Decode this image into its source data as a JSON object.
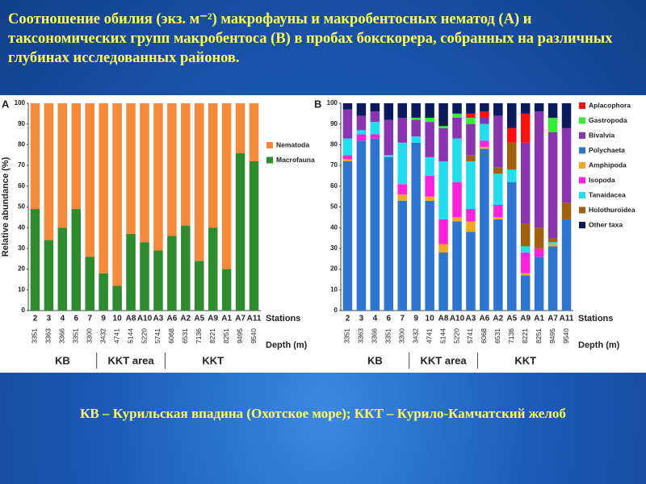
{
  "title": "Соотношение обилия (экз. м⁻²) макрофауны и макробентосных нематод (A) и таксономических групп макробентоса (B) в пробах бокскорера, собранных на различных глубинах исследованных районов.",
  "footnote": "КВ – Курильская  впадина  (Охотское  море);   ККТ – Курило-Камчатский  желоб",
  "chart_data": [
    {
      "type": "bar",
      "panel": "A",
      "ylabel": "Relative abundance (%)",
      "x_label": "Stations",
      "depth_label": "Depth (m)",
      "groups": [
        "KB",
        "KKT area",
        "KKT"
      ],
      "categories": [
        "2",
        "3",
        "4",
        "6",
        "7",
        "9",
        "10",
        "A8",
        "A10",
        "A3",
        "A6",
        "A2",
        "A5",
        "A9",
        "A1",
        "A7",
        "A11"
      ],
      "depths": [
        3351,
        3363,
        3366,
        3351,
        3300,
        3432,
        4741,
        5144,
        5220,
        5741,
        6068,
        6531,
        7136,
        8221,
        8251,
        9495,
        9540
      ],
      "ylim": [
        0,
        100
      ],
      "yticks": [
        0,
        10,
        20,
        30,
        40,
        50,
        60,
        70,
        80,
        90,
        100
      ],
      "series": [
        {
          "name": "Nematoda",
          "color": "#f58a3a",
          "values": [
            51,
            66,
            60,
            51,
            74,
            82,
            88,
            63,
            67,
            71,
            64,
            59,
            76,
            60,
            80,
            24,
            28
          ]
        },
        {
          "name": "Macrofauna",
          "color": "#2e8b2e",
          "values": [
            49,
            34,
            40,
            49,
            26,
            18,
            12,
            37,
            33,
            29,
            36,
            41,
            24,
            40,
            20,
            76,
            72
          ]
        }
      ]
    },
    {
      "type": "bar",
      "panel": "B",
      "x_label": "Stations",
      "depth_label": "Depth (m)",
      "groups": [
        "KB",
        "KKT area",
        "KKT"
      ],
      "categories": [
        "2",
        "3",
        "4",
        "6",
        "7",
        "9",
        "10",
        "A8",
        "A10",
        "A3",
        "A6",
        "A2",
        "A5",
        "A9",
        "A1",
        "A7",
        "A11"
      ],
      "depths": [
        3351,
        3363,
        3366,
        3351,
        3300,
        3432,
        4741,
        5144,
        5220,
        5741,
        6068,
        6531,
        7136,
        8221,
        8251,
        9495,
        9540
      ],
      "ylim": [
        0,
        100
      ],
      "yticks": [
        0,
        10,
        20,
        30,
        40,
        50,
        60,
        70,
        80,
        90,
        100
      ],
      "series": [
        {
          "name": "Aplacophora",
          "color": "#ff1010",
          "values": [
            0,
            0,
            0,
            0,
            0,
            0,
            0,
            0,
            0,
            2,
            3,
            0,
            7,
            14,
            0,
            0,
            0
          ]
        },
        {
          "name": "Gastropoda",
          "color": "#33ee33",
          "values": [
            0,
            0,
            0,
            0,
            0,
            1,
            2,
            1,
            2,
            3,
            0,
            0,
            0,
            0,
            0,
            7,
            0
          ]
        },
        {
          "name": "Bivalvia",
          "color": "#8a35b0",
          "values": [
            14,
            7,
            5,
            17,
            12,
            8,
            17,
            16,
            10,
            15,
            3,
            25,
            0,
            39,
            56,
            51,
            36
          ]
        },
        {
          "name": "Polychaeta",
          "color": "#2e75d0",
          "values": [
            72,
            82,
            83,
            74,
            53,
            81,
            53,
            28,
            43,
            38,
            78,
            44,
            62,
            17,
            26,
            31,
            44
          ]
        },
        {
          "name": "Amphipoda",
          "color": "#f5a623",
          "values": [
            1,
            0,
            0,
            0,
            3,
            0,
            2,
            4,
            2,
            5,
            1,
            1,
            0,
            1,
            0,
            1,
            0
          ]
        },
        {
          "name": "Isopoda",
          "color": "#ff22dd",
          "values": [
            2,
            3,
            2,
            0,
            5,
            0,
            10,
            12,
            17,
            6,
            3,
            6,
            0,
            10,
            4,
            0,
            0
          ]
        },
        {
          "name": "Tanaidacea",
          "color": "#22ddee",
          "values": [
            8,
            2,
            6,
            1,
            20,
            3,
            9,
            28,
            21,
            23,
            8,
            15,
            6,
            3,
            0,
            1,
            0
          ]
        },
        {
          "name": "Holothuroidea",
          "color": "#a06010",
          "values": [
            0,
            0,
            0,
            0,
            0,
            0,
            0,
            0,
            0,
            3,
            0,
            3,
            13,
            11,
            10,
            2,
            8
          ]
        },
        {
          "name": "Other taxa",
          "color": "#0a1a5a",
          "values": [
            3,
            6,
            4,
            8,
            7,
            7,
            7,
            11,
            5,
            5,
            4,
            6,
            12,
            5,
            4,
            7,
            12
          ]
        }
      ]
    }
  ]
}
